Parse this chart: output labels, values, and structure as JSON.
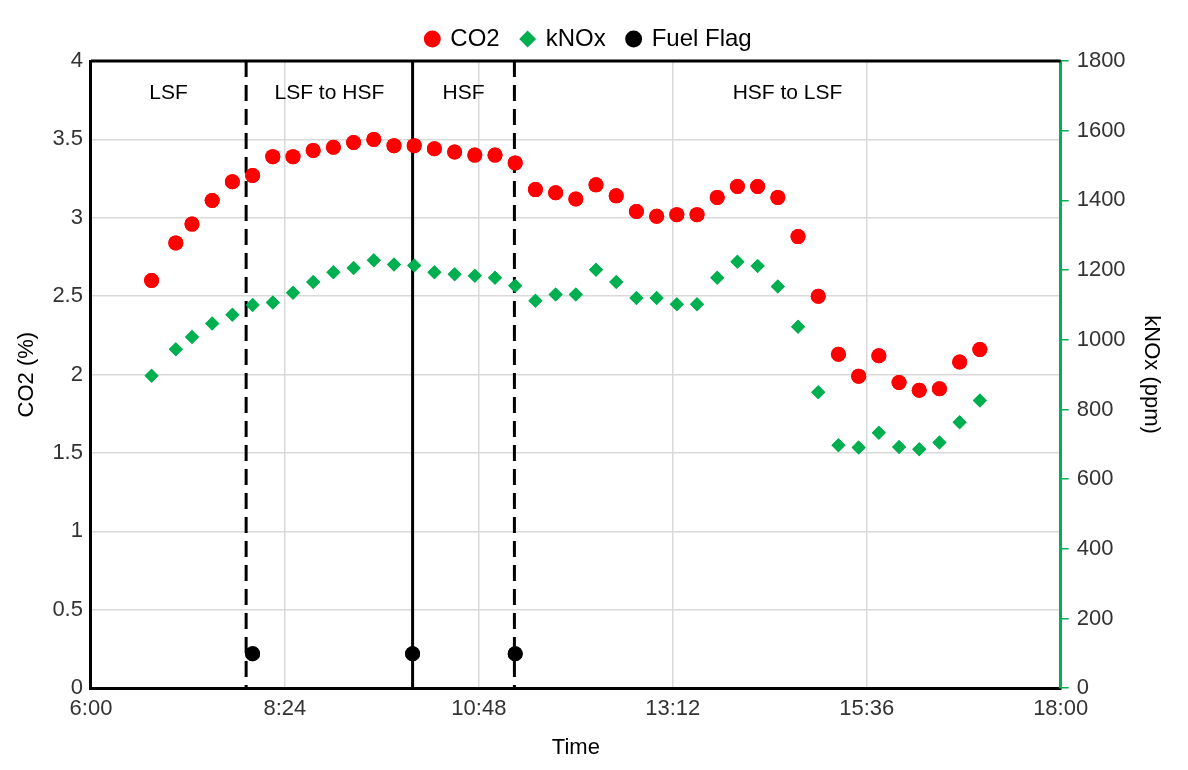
{
  "chart_data": {
    "type": "scatter",
    "xlabel": "Time",
    "ylabel": "CO2 (%)",
    "y2label": "kNOx (ppm)",
    "xlim": [
      6,
      18
    ],
    "xticks": [
      {
        "value": 6,
        "label": "6:00"
      },
      {
        "value": 8.4,
        "label": "8:24"
      },
      {
        "value": 10.8,
        "label": "10:48"
      },
      {
        "value": 13.2,
        "label": "13:12"
      },
      {
        "value": 15.6,
        "label": "15:36"
      },
      {
        "value": 18,
        "label": "18:00"
      }
    ],
    "ylim": [
      0,
      4
    ],
    "yticks": [
      0,
      0.5,
      1,
      1.5,
      2,
      2.5,
      3,
      3.5,
      4
    ],
    "y2lim": [
      0,
      1800
    ],
    "y2ticks": [
      0,
      200,
      400,
      600,
      800,
      1000,
      1200,
      1400,
      1600,
      1800
    ],
    "grid": true,
    "legend": "top",
    "x": [
      6.75,
      7.05,
      7.25,
      7.5,
      7.75,
      8.0,
      8.25,
      8.5,
      8.75,
      9.0,
      9.25,
      9.5,
      9.75,
      10.0,
      10.25,
      10.5,
      10.75,
      11.0,
      11.25,
      11.5,
      11.75,
      12.0,
      12.25,
      12.5,
      12.75,
      13.0,
      13.25,
      13.5,
      13.75,
      14.0,
      14.25,
      14.5,
      14.75,
      15.0,
      15.25,
      15.5,
      15.75,
      16.0,
      16.25,
      16.5,
      16.75,
      17.0
    ],
    "series": [
      {
        "name": "CO2",
        "color": "#ff0000",
        "marker": "circle",
        "values": [
          2.6,
          2.84,
          2.96,
          3.11,
          3.23,
          3.27,
          3.39,
          3.39,
          3.43,
          3.45,
          3.48,
          3.5,
          3.46,
          3.46,
          3.44,
          3.42,
          3.4,
          3.4,
          3.35,
          3.18,
          3.16,
          3.12,
          3.21,
          3.14,
          3.04,
          3.01,
          3.02,
          3.02,
          3.13,
          3.2,
          3.2,
          3.13,
          2.88,
          2.5,
          2.13,
          1.99,
          2.12,
          1.95,
          1.9,
          1.91,
          2.08,
          2.16
        ]
      },
      {
        "name": "kNOx",
        "color": "#00b050",
        "marker": "diamond",
        "axis": "y2",
        "values": [
          897,
          973,
          1008,
          1047,
          1072,
          1100,
          1107,
          1135,
          1166,
          1194,
          1206,
          1228,
          1216,
          1213,
          1194,
          1188,
          1184,
          1178,
          1155,
          1112,
          1130,
          1130,
          1201,
          1166,
          1120,
          1120,
          1102,
          1102,
          1178,
          1224,
          1212,
          1153,
          1037,
          849,
          697,
          691,
          733,
          692,
          686,
          705,
          763,
          826
        ]
      },
      {
        "name": "Fuel Flag",
        "color": "#000000",
        "marker": "circle",
        "x": [
          8.0,
          9.98,
          11.25
        ],
        "values": [
          0.22,
          0.22,
          0.22
        ]
      }
    ],
    "ref_lines": [
      {
        "axis": "x",
        "value": 7.92,
        "color": "#000000",
        "line_style": "dashed"
      },
      {
        "axis": "x",
        "value": 9.98,
        "color": "#000000",
        "line_style": "solid"
      },
      {
        "axis": "x",
        "value": 11.24,
        "color": "#000000",
        "line_style": "dashed"
      }
    ],
    "annotations": [
      "LSF",
      "LSF to HSF",
      "HSF",
      "HSF to LSF"
    ]
  }
}
